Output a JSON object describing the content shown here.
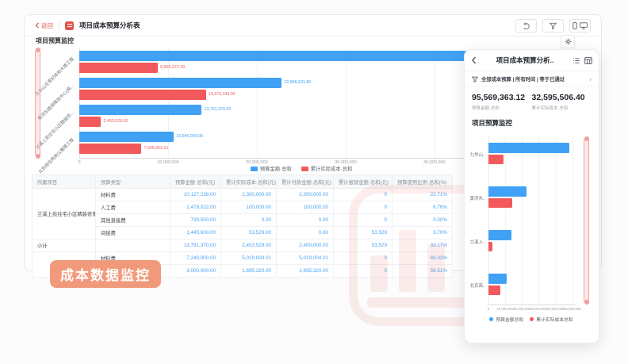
{
  "colors": {
    "blue": "#41a1f5",
    "red": "#f1595c",
    "accent": "#e3554d",
    "badge_bg": "#f19a7b",
    "watermark": "#e8574f"
  },
  "titlebar": {
    "back_label": "返回",
    "title": "项目成本预算分析表"
  },
  "main": {
    "section_title": "项目预算监控"
  },
  "chart_data": [
    {
      "type": "bar",
      "orientation": "horizontal",
      "title": "项目预算监控",
      "categories": [
        "九华山庄贵妃体检大楼工程",
        "黄河东路保障房中心(高...",
        "兰溪上苑住宅小区精装修...",
        "北京商住两用公寓楼工程"
      ],
      "series": [
        {
          "name": "预算金额·总和",
          "color": "#41a1f5",
          "values": [
            48331361.32,
            22806631.8,
            13791370.0,
            10640000.0
          ],
          "labels": [
            "",
            "22,806,631.80",
            "13,791,370.00",
            "10,640,000.00"
          ]
        },
        {
          "name": "累计实际成本·总和",
          "color": "#f1595c",
          "values": [
            8856372.39,
            14276343.0,
            2453529.0,
            7009262.01
          ],
          "labels": [
            "8,856,372.39",
            "14,276,343.00",
            "2,453,529.00",
            "7,009,262.01"
          ]
        }
      ],
      "x_ticks": [
        "0",
        "10,000,000",
        "20,000,000",
        "30,000,000",
        "40,000,000"
      ],
      "xlim": [
        0,
        58500000
      ],
      "grid": true,
      "legend_position": "bottom"
    },
    {
      "type": "bar",
      "orientation": "horizontal",
      "title": "项目预算监控",
      "categories": [
        "九华山..",
        "黄河东..",
        "兰溪上..",
        "北京商.."
      ],
      "series": [
        {
          "name": "预算金额总和",
          "color": "#41a1f5",
          "values": [
            48331361.32,
            22806631.8,
            13791370.0,
            10640000.0
          ],
          "labels": [
            "",
            "",
            "",
            ""
          ]
        },
        {
          "name": "累计实际成本总和",
          "color": "#f1595c",
          "values": [
            8856372.39,
            14276343.0,
            2453529.0,
            7009262.01
          ],
          "labels": [
            "",
            "",
            "",
            ""
          ]
        }
      ],
      "x_ticks": [
        "0",
        "10,000,000",
        "20,000,000",
        "30,000,000",
        "40,000,000",
        "50,000,000"
      ],
      "xlim": [
        0,
        52000000
      ],
      "grid": true,
      "legend_position": "bottom"
    }
  ],
  "table": {
    "columns": [
      "所属项目",
      "预算类型",
      "预算金额·总和(元)",
      "累计实际成本·总和(元)",
      "累计付款金额·总和(元)",
      "累计报销金额·总和(元)",
      "预算使用比例·总和(%)"
    ],
    "rows": [
      {
        "project": "兰溪上苑住宅小区精装修第...",
        "span": 4,
        "type": "材料费",
        "budget": "10,127,238.00",
        "actual": "2,300,000.00",
        "payment": "2,300,000.00",
        "reimburse": "0",
        "ratio": "22.71%"
      },
      {
        "type": "人工费",
        "budget": "1,479,032.00",
        "actual": "100,000.00",
        "payment": "100,000.00",
        "reimburse": "0",
        "ratio": "6.76%"
      },
      {
        "type": "其他直接费",
        "budget": "739,500.00",
        "actual": "0.00",
        "payment": "0.00",
        "reimburse": "0",
        "ratio": "0.00%"
      },
      {
        "type": "间接费",
        "budget": "1,445,600.00",
        "actual": "53,529.00",
        "payment": "0.00",
        "reimburse": "53,529",
        "ratio": "3.70%"
      },
      {
        "project": "小计",
        "span": 1,
        "type": "",
        "budget": "13,791,370.00",
        "actual": "2,453,529.00",
        "payment": "2,400,000.00",
        "reimburse": "53,529",
        "ratio": "33.17%"
      },
      {
        "project": "",
        "span": 2,
        "type": "材料费",
        "budget": "7,240,000.00",
        "actual": "5,019,004.01",
        "payment": "5,019,004.01",
        "reimburse": "0",
        "ratio": "69.32%"
      },
      {
        "type": "",
        "budget": "3,000,000.00",
        "actual": "1,695,320.00",
        "payment": "1,695,320.00",
        "reimburse": "0",
        "ratio": "56.51%"
      }
    ]
  },
  "badge_label": "成本数据监控",
  "panel": {
    "title": "项目成本预算分析..",
    "filter_text": "全部成本预算 | 所有时间 | 等于已通过",
    "kpis": [
      {
        "value": "95,569,363.12",
        "label": "预算金额·总和"
      },
      {
        "value": "32,595,506.40",
        "label": "累计实际成本·总和"
      }
    ],
    "section_title": "项目预算监控"
  },
  "icons": {
    "toolbar": [
      "undo-icon",
      "filter-icon",
      "phone-icon",
      "monitor-icon"
    ],
    "card": [
      "back-chevron-icon",
      "doc-icon",
      "gear-icon"
    ],
    "panel": [
      "back-icon",
      "list-icon",
      "grid-icon",
      "filter-icon",
      "chevron-right-icon"
    ]
  }
}
